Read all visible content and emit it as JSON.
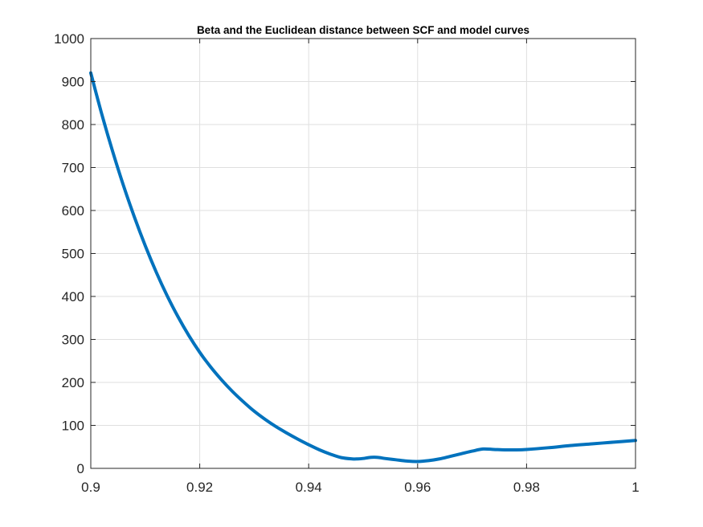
{
  "chart_data": {
    "type": "line",
    "title": "Beta and the Euclidean distance between SCF and model curves",
    "xlabel": "",
    "ylabel": "",
    "xlim": [
      0.9,
      1.0
    ],
    "ylim": [
      0,
      1000
    ],
    "xticks": [
      0.9,
      0.92,
      0.94,
      0.96,
      0.98,
      1.0
    ],
    "xtick_labels": [
      "0.9",
      "0.92",
      "0.94",
      "0.96",
      "0.98",
      "1"
    ],
    "yticks": [
      0,
      100,
      200,
      300,
      400,
      500,
      600,
      700,
      800,
      900,
      1000
    ],
    "ytick_labels": [
      "0",
      "100",
      "200",
      "300",
      "400",
      "500",
      "600",
      "700",
      "800",
      "900",
      "1000"
    ],
    "grid": true,
    "legend": "none",
    "line_color": "#0072BD",
    "series": [
      {
        "x": [
          0.9,
          0.902,
          0.904,
          0.906,
          0.908,
          0.91,
          0.912,
          0.914,
          0.916,
          0.918,
          0.92,
          0.922,
          0.924,
          0.926,
          0.928,
          0.93,
          0.932,
          0.934,
          0.936,
          0.938,
          0.94,
          0.942,
          0.944,
          0.946,
          0.948,
          0.949,
          0.95,
          0.951,
          0.952,
          0.953,
          0.954,
          0.956,
          0.958,
          0.96,
          0.962,
          0.964,
          0.966,
          0.968,
          0.97,
          0.972,
          0.974,
          0.976,
          0.978,
          0.98,
          0.984,
          0.988,
          0.992,
          0.996,
          1.0
        ],
        "values": [
          920,
          825,
          738,
          658,
          585,
          518,
          457,
          402,
          353,
          309,
          270,
          236,
          206,
          179,
          155,
          133,
          114,
          97,
          82,
          68,
          55,
          43,
          33,
          25,
          22,
          22,
          23,
          25,
          26,
          25,
          23,
          20,
          17,
          16,
          18,
          22,
          28,
          34,
          40,
          45,
          44,
          43,
          43,
          44,
          48,
          53,
          57,
          61,
          65
        ]
      }
    ]
  }
}
